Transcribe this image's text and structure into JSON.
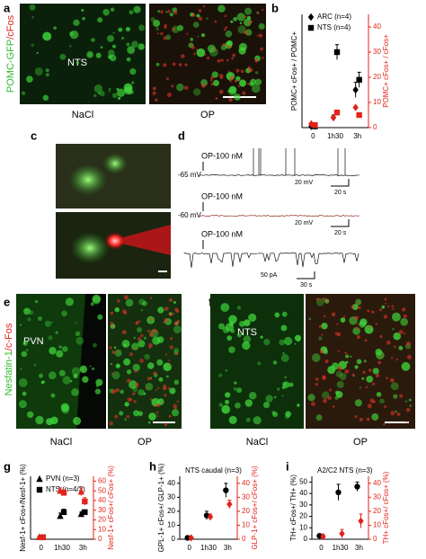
{
  "figure": {
    "a": {
      "letter": "a",
      "stain_green": "POMC-GFP",
      "stain_red": "/cFos",
      "region": "NTS",
      "conditions": [
        "NaCl",
        "OP"
      ]
    },
    "b": {
      "letter": "b"
    },
    "c": {
      "letter": "c"
    },
    "d": {
      "letter": "d",
      "traces": [
        {
          "drug": "OP-100 nM",
          "potential": "-65 mV",
          "scale_y": "20 mV",
          "scale_x": "20 s"
        },
        {
          "drug": "OP-100 nM",
          "potential": "-60 mV",
          "scale_y": "20 mV",
          "scale_x": "20 s"
        },
        {
          "drug": "OP-100 nM",
          "scale_y": "50 pA",
          "scale_x": "30 s"
        }
      ]
    },
    "e": {
      "letter": "e",
      "stain_green": "Nesfatin-1",
      "stain_red": "/c-Fos",
      "region": "PVN",
      "conditions": [
        "NaCl",
        "OP"
      ]
    },
    "f": {
      "letter": "f",
      "region": "NTS",
      "conditions": [
        "NaCl",
        "OP"
      ]
    },
    "g": {
      "letter": "g"
    },
    "h": {
      "letter": "h"
    },
    "i": {
      "letter": "i"
    }
  },
  "chart_data": [
    {
      "type": "scatter",
      "categories": [
        "0",
        "1h30",
        "3h"
      ],
      "y_label": "POMC+ cFos+ / POMC+",
      "y2_label": "POMC+ cFos+ / cFos+",
      "ylim": [
        0,
        45
      ],
      "y2lim": [
        0,
        45
      ],
      "y2ticks": [
        0,
        10,
        20,
        30,
        40
      ],
      "legend": "top-left",
      "series": [
        {
          "name": "ARC (n=4)",
          "marker": "diamond",
          "color": "#000000",
          "values": [
            0.5,
            4,
            15
          ],
          "errors": [
            0.5,
            1,
            3
          ]
        },
        {
          "name": "NTS (n=4)",
          "marker": "square",
          "color": "#000000",
          "values": [
            0.5,
            30,
            19
          ],
          "errors": [
            0.5,
            3,
            3
          ]
        },
        {
          "marker": "diamond",
          "color": "#e2231a",
          "axis": "y2",
          "values": [
            1.5,
            4,
            8
          ]
        },
        {
          "marker": "square",
          "color": "#e2231a",
          "axis": "y2",
          "values": [
            1,
            6,
            5
          ]
        }
      ]
    },
    {
      "type": "scatter",
      "categories": [
        "0",
        "1h30",
        "3h"
      ],
      "y_label": "Nesf-1+ cFos+/Nesf-1+ (%)",
      "y2_label": "Nesf-1+ cFos+/ cFos+ (%)",
      "ylim": [
        0,
        65
      ],
      "y2lim": [
        0,
        65
      ],
      "y2ticks": [
        0,
        10,
        20,
        30,
        40,
        50,
        60
      ],
      "legend": "top-left",
      "series": [
        {
          "name": "PVN (n=3)",
          "marker": "triangle",
          "color": "#000000",
          "values": [
            2,
            24,
            26
          ],
          "errors": [
            1,
            3,
            2
          ]
        },
        {
          "name": "NTS (n=4/3)",
          "marker": "square",
          "color": "#000000",
          "values": [
            2,
            28,
            28
          ],
          "errors": [
            1,
            3,
            2
          ]
        },
        {
          "marker": "triangle",
          "color": "#e2231a",
          "axis": "y2",
          "values": [
            2,
            50,
            49
          ],
          "errors": [
            1,
            3,
            4
          ]
        },
        {
          "marker": "square",
          "color": "#e2231a",
          "axis": "y2",
          "values": [
            2,
            48,
            39
          ],
          "errors": [
            1,
            3,
            4
          ]
        }
      ]
    },
    {
      "type": "scatter",
      "title": "NTS caudal (n=3)",
      "categories": [
        "0",
        "1h30",
        "3h"
      ],
      "y_label": "GPL-1+ cFos+/ GLP-1+ (%)",
      "y2_label": "GLP-1+ cFos+/ cFos+ (%)",
      "ylim": [
        0,
        45
      ],
      "yticks": [
        0,
        10,
        20,
        30,
        40
      ],
      "y2lim": [
        0,
        45
      ],
      "y2ticks": [
        0,
        10,
        20,
        30,
        40
      ],
      "series": [
        {
          "marker": "circle",
          "color": "#000000",
          "values": [
            1,
            17,
            35
          ],
          "errors": [
            1,
            3,
            5
          ]
        },
        {
          "marker": "diamond",
          "color": "#e2231a",
          "axis": "y2",
          "values": [
            1,
            16,
            25
          ],
          "errors": [
            1,
            2,
            3
          ]
        }
      ]
    },
    {
      "type": "scatter",
      "title": "A2/C2 NTS (n=3)",
      "categories": [
        "0",
        "1h30",
        "3h"
      ],
      "y_label": "TH+ cFos+/ TH+ (%)",
      "y2_label": "TH+ cFos+/ cFos+ (%)",
      "ylim": [
        0,
        55
      ],
      "yticks": [
        0,
        10,
        20,
        30,
        40,
        50
      ],
      "y2lim": [
        0,
        45
      ],
      "y2ticks": [
        0,
        10,
        20,
        30,
        40
      ],
      "series": [
        {
          "marker": "circle",
          "color": "#000000",
          "values": [
            3,
            41,
            46
          ],
          "errors": [
            1,
            7,
            4
          ]
        },
        {
          "marker": "diamond",
          "color": "#e2231a",
          "axis": "y2",
          "values": [
            2,
            4,
            13
          ],
          "errors": [
            1,
            3,
            5
          ]
        }
      ]
    }
  ]
}
